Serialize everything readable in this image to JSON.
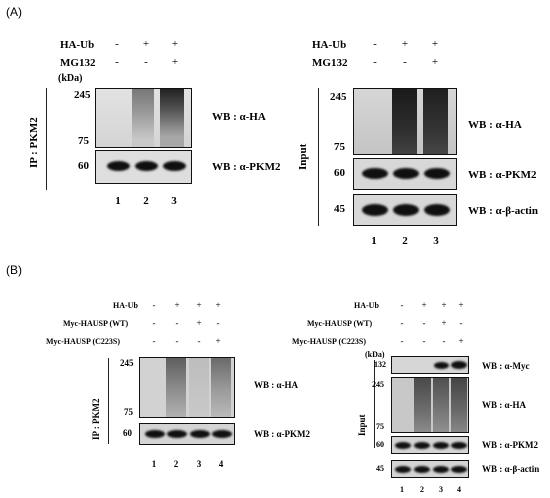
{
  "panel_a": {
    "label": "(A)",
    "ip": {
      "treatments": [
        {
          "name": "HA-Ub",
          "marks": [
            "-",
            "+",
            "+"
          ]
        },
        {
          "name": "MG132",
          "marks": [
            "-",
            "-",
            "+"
          ]
        }
      ],
      "mw_unit": "(kDa)",
      "side_label": "IP : PKM2",
      "ha_markers": [
        "245",
        "75"
      ],
      "pkm2_marker": "60",
      "wb_ha": "WB : α-HA",
      "wb_pkm2": "WB : α-PKM2",
      "lanes": [
        "1",
        "2",
        "3"
      ]
    },
    "input": {
      "treatments": [
        {
          "name": "HA-Ub",
          "marks": [
            "-",
            "+",
            "+"
          ]
        },
        {
          "name": "MG132",
          "marks": [
            "-",
            "-",
            "+"
          ]
        }
      ],
      "side_label": "Input",
      "ha_markers": [
        "245",
        "75"
      ],
      "pkm2_marker": "60",
      "actin_marker": "45",
      "wb_ha": "WB : α-HA",
      "wb_pkm2": "WB : α-PKM2",
      "wb_actin": "WB : α-β-actin",
      "lanes": [
        "1",
        "2",
        "3"
      ]
    }
  },
  "panel_b": {
    "label": "(B)",
    "ip": {
      "treatments": [
        {
          "name": "HA-Ub",
          "marks": [
            "-",
            "+",
            "+",
            "+"
          ]
        },
        {
          "name": "Myc-HAUSP (WT)",
          "marks": [
            "-",
            "-",
            "+",
            "-"
          ]
        },
        {
          "name": "Myc-HAUSP (C223S)",
          "marks": [
            "-",
            "-",
            "-",
            "+"
          ]
        }
      ],
      "side_label": "IP : PKM2",
      "ha_markers": [
        "245",
        "75"
      ],
      "pkm2_marker": "60",
      "wb_ha": "WB : α-HA",
      "wb_pkm2": "WB : α-PKM2",
      "lanes": [
        "1",
        "2",
        "3",
        "4"
      ]
    },
    "input": {
      "treatments": [
        {
          "name": "HA-Ub",
          "marks": [
            "-",
            "+",
            "+",
            "+"
          ]
        },
        {
          "name": "Myc-HAUSP (WT)",
          "marks": [
            "-",
            "-",
            "+",
            "-"
          ]
        },
        {
          "name": "Myc-HAUSP (C223S)",
          "marks": [
            "-",
            "-",
            "-",
            "+"
          ]
        }
      ],
      "mw_unit": "(kDa)",
      "side_label": "Input",
      "myc_marker": "132",
      "ha_markers": [
        "245",
        "75"
      ],
      "pkm2_marker": "60",
      "actin_marker": "45",
      "wb_myc": "WB : α-Myc",
      "wb_ha": "WB : α-HA",
      "wb_pkm2": "WB : α-PKM2",
      "wb_actin": "WB : α-β-actin",
      "lanes": [
        "1",
        "2",
        "3",
        "4"
      ]
    }
  }
}
